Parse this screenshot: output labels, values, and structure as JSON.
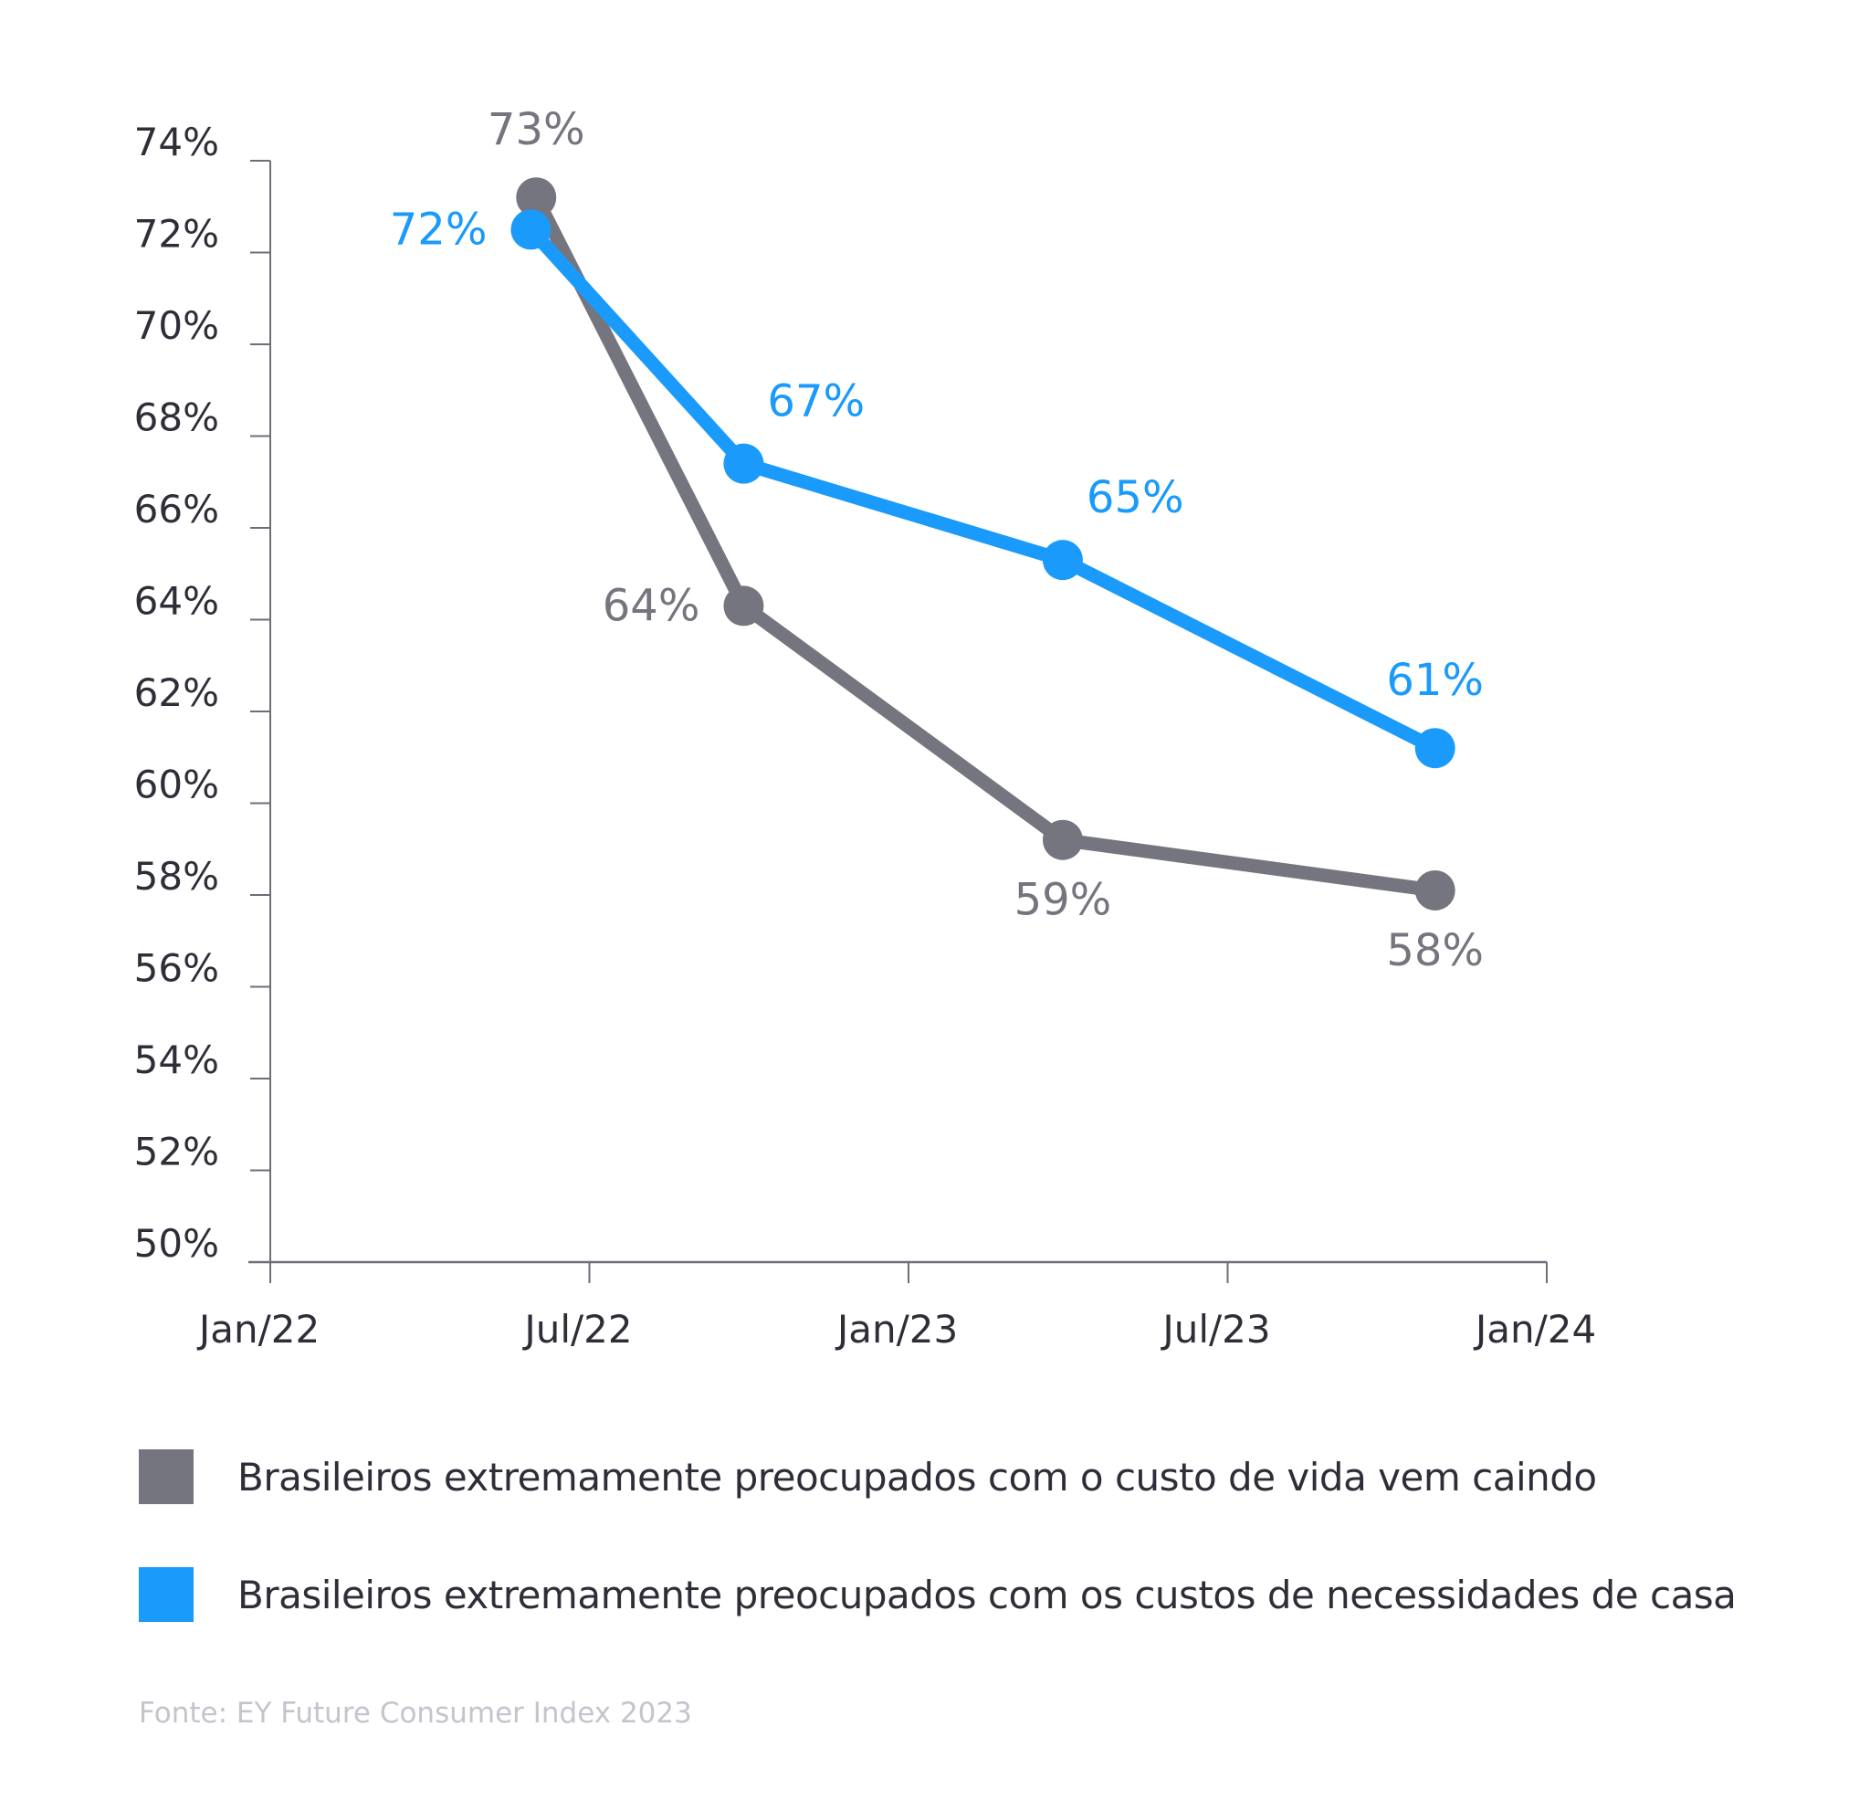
{
  "chart_data": {
    "type": "line",
    "title": "",
    "xlabel": "",
    "ylabel": "",
    "ylim": [
      50,
      74
    ],
    "yticks": [
      "74%",
      "72%",
      "70%",
      "68%",
      "66%",
      "64%",
      "62%",
      "60%",
      "58%",
      "56%",
      "54%",
      "52%",
      "50%"
    ],
    "ytick_values": [
      74,
      72,
      70,
      68,
      66,
      64,
      62,
      60,
      58,
      56,
      54,
      52,
      50
    ],
    "xticks": [
      "Jan/22",
      "Jul/22",
      "Jan/23",
      "Jul/23",
      "Jan/24"
    ],
    "xtick_values": [
      0,
      6,
      12,
      18,
      24
    ],
    "xlim": [
      0,
      24
    ],
    "x_unit": "months since Jan/22",
    "grid": false,
    "legend_position": "bottom",
    "series": [
      {
        "name": "Brasileiros extremamente preocupados com o custo de vida vem caindo",
        "color": "#75757f",
        "x": [
          5,
          8.9,
          14.9,
          21.9
        ],
        "values": [
          73.2,
          64.3,
          59.2,
          58.1
        ],
        "labels": [
          "73%",
          "64%",
          "59%",
          "58%"
        ],
        "label_positions": [
          "above",
          "left",
          "below",
          "below"
        ]
      },
      {
        "name": "Brasileiros extremamente preocupados com os custos de necessidades de casa",
        "color": "#1a9afa",
        "x": [
          4.9,
          8.9,
          14.9,
          21.9
        ],
        "values": [
          72.5,
          67.4,
          65.3,
          61.2
        ],
        "labels": [
          "72%",
          "67%",
          "65%",
          "61%"
        ],
        "label_positions": [
          "left",
          "above-right",
          "above-right",
          "above"
        ]
      }
    ]
  },
  "legend": [
    {
      "label": "Brasileiros extremamente preocupados com o custo de vida vem caindo",
      "color": "#75757f"
    },
    {
      "label": "Brasileiros extremamente preocupados com os custos de necessidades de casa",
      "color": "#1a9afa"
    }
  ],
  "source": "Fonte: EY Future Consumer Index 2023"
}
